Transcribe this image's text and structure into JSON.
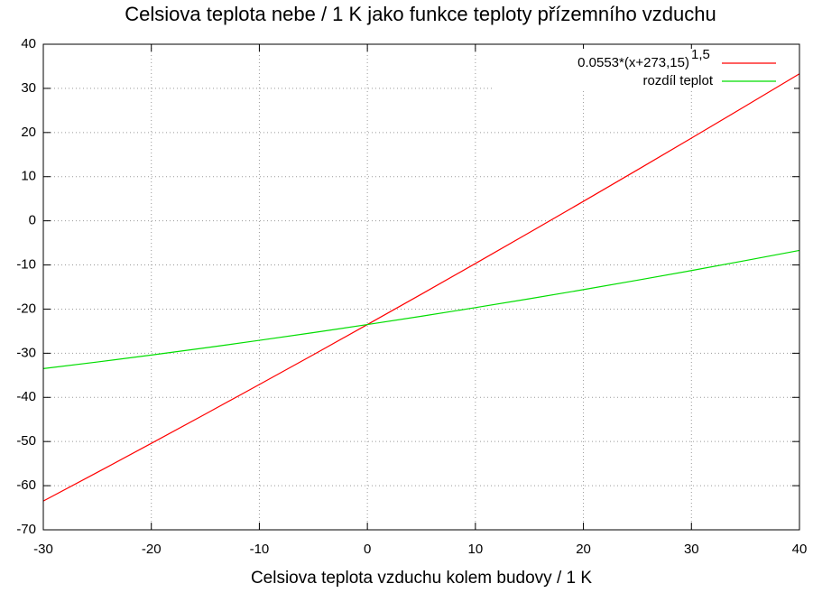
{
  "chart_data": {
    "type": "line",
    "title": "Celsiova teplota nebe / 1 K jako funkce teploty přízemního vzduchu",
    "x_label": "Celsiova teplota vzduchu kolem budovy / 1 K",
    "x": [
      -30,
      -25,
      -20,
      -15,
      -10,
      -5,
      0,
      5,
      10,
      15,
      20,
      25,
      30,
      35,
      40
    ],
    "series": [
      {
        "name": "0.0553*(x+273,15)",
        "name_superscript": "1,5",
        "color": "#ff0000",
        "values": [
          -63.48,
          -56.98,
          -50.41,
          -43.78,
          -37.08,
          -30.33,
          -23.5,
          -16.62,
          -9.67,
          -2.66,
          4.41,
          11.54,
          18.73,
          25.99,
          33.3
        ]
      },
      {
        "name": "rozdíl teplot",
        "color": "#00dd00",
        "values": [
          -33.48,
          -31.98,
          -30.41,
          -28.78,
          -27.08,
          -25.33,
          -23.5,
          -21.62,
          -19.67,
          -17.66,
          -15.59,
          -13.46,
          -11.27,
          -9.01,
          -6.7
        ]
      }
    ],
    "xlim": [
      -30,
      40
    ],
    "xticks": [
      -30,
      -20,
      -10,
      0,
      10,
      20,
      30,
      40
    ],
    "ylim": [
      -70,
      40
    ],
    "yticks": [
      -70,
      -60,
      -50,
      -40,
      -30,
      -20,
      -10,
      0,
      10,
      20,
      30,
      40
    ],
    "grid": true,
    "legend": "top-right"
  }
}
